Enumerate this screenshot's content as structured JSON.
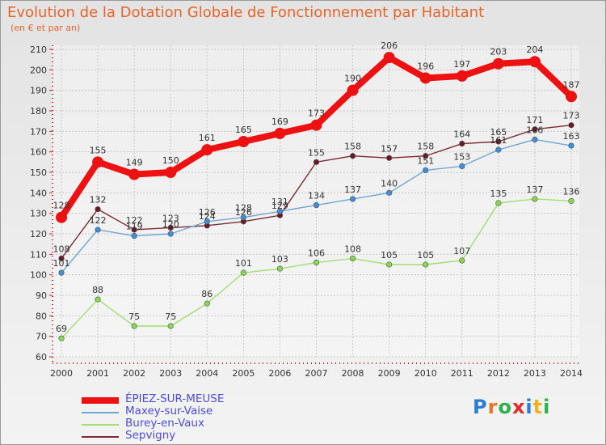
{
  "title": "Evolution de la Dotation Globale de Fonctionnement par Habitant",
  "subtitle": "(en € et par an)",
  "logo": {
    "text": "Proxiti",
    "colors": [
      "#2b7bd8",
      "#e8742a",
      "#2bb24c",
      "#e02b2b",
      "#2b7bd8",
      "#f0b020",
      "#2bb24c"
    ]
  },
  "chart_data": {
    "type": "line",
    "x": [
      "2000",
      "2001",
      "2002",
      "2003",
      "2004",
      "2005",
      "2006",
      "2007",
      "2008",
      "2009",
      "2010",
      "2011",
      "2012",
      "2013",
      "2014"
    ],
    "ylim": [
      60,
      210
    ],
    "yticks": [
      60,
      70,
      80,
      90,
      100,
      110,
      120,
      130,
      140,
      150,
      160,
      170,
      180,
      190,
      200,
      210
    ],
    "grid": true,
    "legend_position": "bottom-left",
    "series": [
      {
        "name": "ÉPIEZ-SUR-MEUSE",
        "color": "#ee1111",
        "emphasis": true,
        "values": [
          128,
          155,
          149,
          150,
          161,
          165,
          169,
          173,
          190,
          206,
          196,
          197,
          203,
          204,
          187
        ]
      },
      {
        "name": "Maxey-sur-Vaise",
        "color": "#6fa6d4",
        "point_color": "#3c8fd8",
        "values": [
          101,
          122,
          119,
          120,
          126,
          128,
          131,
          134,
          137,
          140,
          151,
          153,
          161,
          166,
          163
        ]
      },
      {
        "name": "Burey-en-Vaux",
        "color": "#9fe070",
        "point_color": "#86d84e",
        "values": [
          69,
          88,
          75,
          75,
          86,
          101,
          103,
          106,
          108,
          105,
          105,
          107,
          135,
          137,
          136
        ]
      },
      {
        "name": "Sepvigny",
        "color": "#7b2b33",
        "point_color": "#6a1a22",
        "values": [
          108,
          132,
          122,
          123,
          124,
          126,
          129,
          155,
          158,
          157,
          158,
          164,
          165,
          171,
          173
        ]
      }
    ]
  }
}
